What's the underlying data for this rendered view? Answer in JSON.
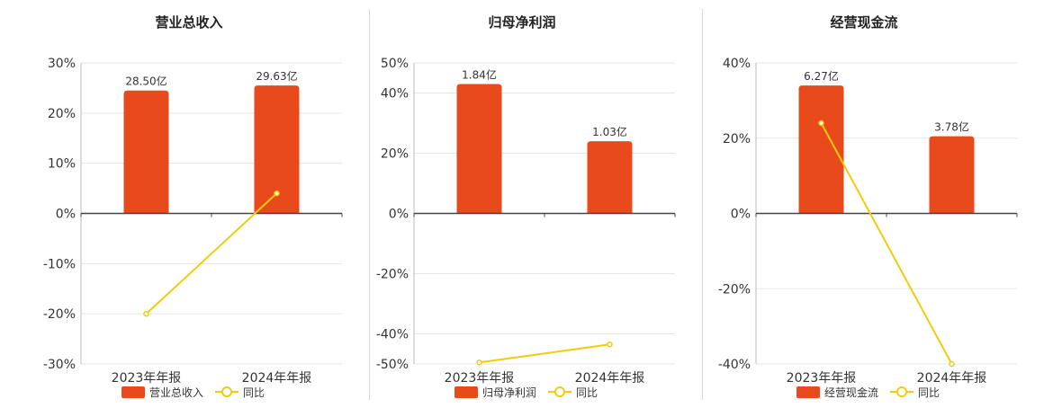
{
  "colors": {
    "bar": "#e84a1b",
    "line": "#f2cc0c",
    "grid": "#e6e6e6",
    "axis": "#444444",
    "text": "#333333"
  },
  "legend_line_label": "同比",
  "chart_data": [
    {
      "type": "bar",
      "title": "营业总收入",
      "categories": [
        "2023年年报",
        "2024年年报"
      ],
      "bar_label_suffix": "亿",
      "series": [
        {
          "name": "营业总收入",
          "type": "bar",
          "values": [
            28.5,
            29.63
          ],
          "labels": [
            "28.50亿",
            "29.63亿"
          ],
          "axis_level_pct": [
            24.5,
            25.5
          ]
        },
        {
          "name": "同比",
          "type": "line",
          "values": [
            -20,
            4
          ]
        }
      ],
      "yticks": [
        "30%",
        "20%",
        "10%",
        "0%",
        "-10%",
        "-20%",
        "-30%"
      ],
      "ytick_values": [
        30,
        20,
        10,
        0,
        -10,
        -20,
        -30
      ],
      "ylim": [
        -30,
        30
      ],
      "grid": true,
      "legend": "bottom-center"
    },
    {
      "type": "bar",
      "title": "归母净利润",
      "categories": [
        "2023年年报",
        "2024年年报"
      ],
      "bar_label_suffix": "亿",
      "series": [
        {
          "name": "归母净利润",
          "type": "bar",
          "values": [
            1.84,
            1.03
          ],
          "labels": [
            "1.84亿",
            "1.03亿"
          ],
          "axis_level_pct": [
            43,
            24
          ]
        },
        {
          "name": "同比",
          "type": "line",
          "values": [
            -49.5,
            -43.5
          ]
        }
      ],
      "yticks": [
        "50%",
        "40%",
        "20%",
        "0%",
        "-20%",
        "-40%",
        "-50%"
      ],
      "ytick_values": [
        50,
        40,
        20,
        0,
        -20,
        -40,
        -50
      ],
      "ylim": [
        -50,
        50
      ],
      "grid": true,
      "legend": "bottom-center"
    },
    {
      "type": "bar",
      "title": "经营现金流",
      "categories": [
        "2023年年报",
        "2024年年报"
      ],
      "bar_label_suffix": "亿",
      "series": [
        {
          "name": "经营现金流",
          "type": "bar",
          "values": [
            6.27,
            3.78
          ],
          "labels": [
            "6.27亿",
            "3.78亿"
          ],
          "axis_level_pct": [
            34,
            20.5
          ]
        },
        {
          "name": "同比",
          "type": "line",
          "values": [
            24,
            -40
          ]
        }
      ],
      "yticks": [
        "40%",
        "20%",
        "0%",
        "-20%",
        "-40%"
      ],
      "ytick_values": [
        40,
        20,
        0,
        -20,
        -40
      ],
      "ylim": [
        -40,
        40
      ],
      "grid": true,
      "legend": "bottom-center"
    }
  ]
}
